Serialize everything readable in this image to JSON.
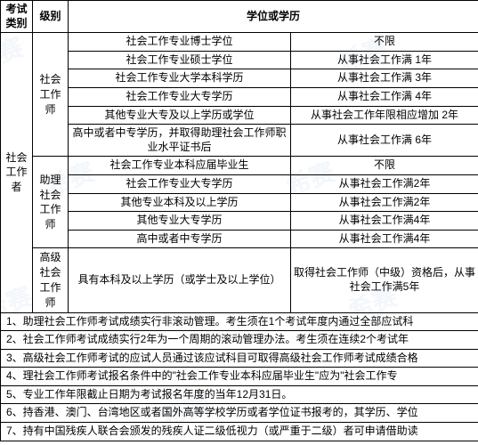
{
  "header": {
    "col1": "考试类别",
    "col2": "级别",
    "col3and4": "学位或学历"
  },
  "category": "社会工作者",
  "levels": {
    "l1": "社会工作师",
    "l2": "助理社会工作师",
    "l3": "高级社会工作师"
  },
  "rows": [
    {
      "edu": "社会工作专业博士学位",
      "req": "不限"
    },
    {
      "edu": "社会工作专业硕士学位",
      "req": "从事社会工作满 1年"
    },
    {
      "edu": "社会工作专业大学本科学历",
      "req": "从事社会工作满 3年"
    },
    {
      "edu": "社会工作专业大专学历",
      "req": "从事社会工作满 4年"
    },
    {
      "edu": "其他专业大专及以上学历或学位",
      "req": "从事社会工作年限相应增加 2年"
    },
    {
      "edu": "高中或者中专学历，并取得助理社会工作师职业水平证书后",
      "req": "从事社会工作满 6年"
    },
    {
      "edu": "社会工作专业本科应届毕业生",
      "req": "不限"
    },
    {
      "edu": "社会工作专业大专学历",
      "req": "从事社会工作满2年"
    },
    {
      "edu": "其他专业本科及以上学历",
      "req": "从事社会工作满2年"
    },
    {
      "edu": "其他专业大专学历",
      "req": "从事社会工作满4年"
    },
    {
      "edu": "高中或者中专学历",
      "req": "从事社会工作满4年"
    },
    {
      "edu": "具有本科及以上学历（或学士及以上学位）",
      "req": "取得社会工作师（中级）资格后，从事社会工作满5年"
    }
  ],
  "notes": [
    "1、助理社会工作师考试成绩实行非滚动管理。考生须在1个考试年度内通过全部应试科",
    "2、社会工作师考试成绩实行2年为一个周期的滚动管理办法。考生须在连续2个考试年",
    "3、高级社会工作师考试的应试人员通过该应试科目可取得高级社会工作师考试成绩合格",
    "4、理社会工作师考试报名条件中的\"社会工作专业本科应届毕业生\"应为\"社会工作专",
    "5、专业工作年限截止日期为考试报名年度的当年12月31日。",
    "6、持香港、澳门、台湾地区或者国外高等学校学历或者学位证书报考的，其学历、学位",
    "7、持有中国残疾人联合会颁发的残疾人证二级低视力（或严重于二级）者可申请借助读"
  ],
  "style": {
    "border_color": "#000000",
    "text_color": "#000000",
    "bg_color": "#ffffff",
    "watermark_color": "#e8f0f8",
    "font_size_body": 12,
    "font_size_watermark": 28
  }
}
